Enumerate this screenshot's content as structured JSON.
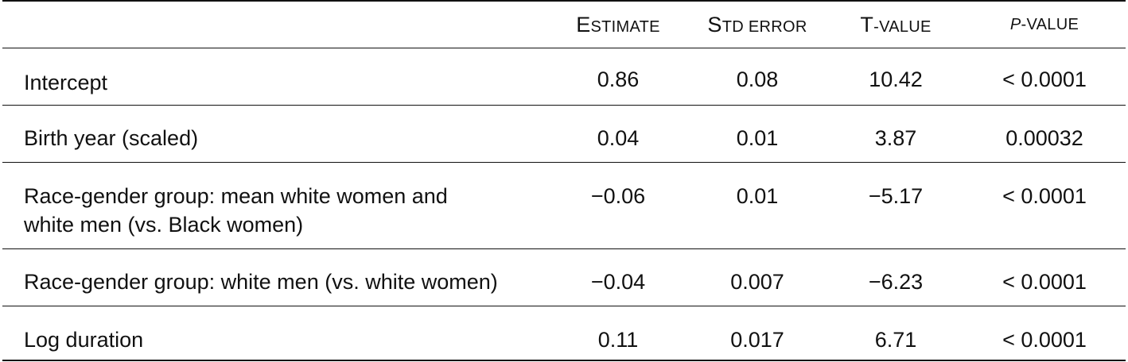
{
  "table": {
    "headers": {
      "estimate": {
        "cap": "E",
        "rest": "STIMATE"
      },
      "std_error": {
        "cap": "S",
        "rest": "TD ERROR"
      },
      "t_value": {
        "cap": "T",
        "rest": "-VALUE"
      },
      "p_value": {
        "p": "P",
        "rest": "-VALUE"
      }
    },
    "rows": [
      {
        "term": "Intercept",
        "estimate": "0.86",
        "std_error": "0.08",
        "t_value": "10.42",
        "p_value": "< 0.0001"
      },
      {
        "term": "Birth year (scaled)",
        "estimate": "0.04",
        "std_error": "0.01",
        "t_value": "3.87",
        "p_value": "0.00032"
      },
      {
        "term_line1": "Race-gender group: mean white women and",
        "term_line2": "white men (vs. Black women)",
        "estimate": "−0.06",
        "std_error": "0.01",
        "t_value": "−5.17",
        "p_value": "< 0.0001"
      },
      {
        "term": "Race-gender group: white men (vs. white women)",
        "estimate": "−0.04",
        "std_error": "0.007",
        "t_value": "−6.23",
        "p_value": "< 0.0001"
      },
      {
        "term": "Log duration",
        "estimate": "0.11",
        "std_error": "0.017",
        "t_value": "6.71",
        "p_value": "< 0.0001"
      }
    ]
  }
}
